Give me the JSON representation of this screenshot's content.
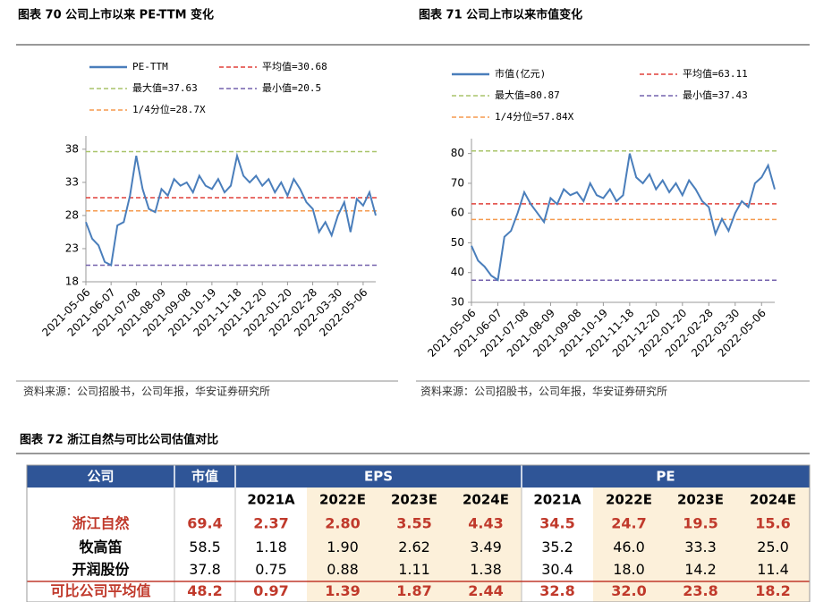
{
  "chart_data": [
    {
      "type": "line",
      "title": "图表 70 公司上市以来 PE-TTM 变化",
      "source": "资料来源：公司招股书，公司年报，华安证券研究所",
      "categories": [
        "2021-05-06",
        null,
        null,
        null,
        "2021-06-07",
        null,
        null,
        null,
        "2021-07-08",
        null,
        null,
        null,
        "2021-08-09",
        null,
        null,
        null,
        "2021-09-08",
        null,
        null,
        null,
        "2021-10-19",
        null,
        null,
        null,
        "2021-11-18",
        null,
        null,
        null,
        "2021-12-20",
        null,
        null,
        null,
        "2022-01-20",
        null,
        null,
        null,
        "2022-02-28",
        null,
        null,
        null,
        "2022-03-30",
        null,
        null,
        null,
        "2022-05-06",
        null,
        null
      ],
      "series": [
        {
          "name": "PE-TTM",
          "color": "#4a7ebb",
          "values": [
            27,
            24.5,
            23.5,
            21,
            20.5,
            26.5,
            27,
            31,
            37,
            32,
            29,
            28.5,
            32,
            31,
            33.5,
            32.5,
            33,
            31.5,
            34,
            32.5,
            32,
            33.5,
            31.5,
            32.5,
            37,
            34,
            33,
            34,
            32.5,
            33.5,
            31.5,
            33,
            31,
            33.5,
            32,
            30,
            29,
            25.5,
            27,
            25,
            28,
            30,
            25.5,
            30.5,
            29.5,
            31.5,
            28
          ]
        }
      ],
      "hlines": [
        {
          "name": "平均值=30.68",
          "value": 30.68,
          "color": "#e0403a"
        },
        {
          "name": "最大值=37.63",
          "value": 37.63,
          "color": "#a9c46a"
        },
        {
          "name": "最小值=20.5",
          "value": 20.5,
          "color": "#7462ad"
        },
        {
          "name": "1/4分位=28.7X",
          "value": 28.7,
          "color": "#f59a4e"
        }
      ],
      "ylim": [
        18,
        40
      ],
      "yticks": [
        18,
        23,
        28,
        33,
        38
      ]
    },
    {
      "type": "line",
      "title": "图表 71 公司上市以来市值变化",
      "source": "资料来源：公司招股书，公司年报，华安证券研究所",
      "categories": [
        "2021-05-06",
        null,
        null,
        null,
        "2021-06-07",
        null,
        null,
        null,
        "2021-07-08",
        null,
        null,
        null,
        "2021-08-09",
        null,
        null,
        null,
        "2021-09-08",
        null,
        null,
        null,
        "2021-10-19",
        null,
        null,
        null,
        "2021-11-18",
        null,
        null,
        null,
        "2021-12-20",
        null,
        null,
        null,
        "2022-01-20",
        null,
        null,
        null,
        "2022-02-28",
        null,
        null,
        null,
        "2022-03-30",
        null,
        null,
        null,
        "2022-05-06",
        null,
        null
      ],
      "series": [
        {
          "name": "市值(亿元)",
          "color": "#4a7ebb",
          "values": [
            49,
            44,
            42,
            39,
            37.5,
            52,
            54,
            60,
            67,
            63,
            60,
            57,
            65,
            63,
            68,
            66,
            67,
            64,
            70,
            66,
            65,
            68,
            64,
            66,
            80,
            72,
            70,
            73,
            68,
            71,
            67,
            70,
            66,
            71,
            68,
            64,
            62,
            53,
            58,
            54,
            60,
            64,
            62,
            70,
            72,
            76,
            68
          ]
        }
      ],
      "hlines": [
        {
          "name": "平均值=63.11",
          "value": 63.11,
          "color": "#e0403a"
        },
        {
          "name": "最大值=80.87",
          "value": 80.87,
          "color": "#a9c46a"
        },
        {
          "name": "最小值=37.43",
          "value": 37.43,
          "color": "#7462ad"
        },
        {
          "name": "1/4分位=57.84X",
          "value": 57.84,
          "color": "#f59a4e"
        }
      ],
      "ylim": [
        30,
        85
      ],
      "yticks": [
        30,
        40,
        50,
        60,
        70,
        80
      ]
    }
  ],
  "table": {
    "title": "图表 72 浙江自然与可比公司估值对比",
    "header": [
      "公司",
      "市值",
      "EPS",
      "PE"
    ],
    "subheader": [
      "2021A",
      "2022E",
      "2023E",
      "2024E",
      "2021A",
      "2022E",
      "2023E",
      "2024E"
    ],
    "rows": [
      [
        "浙江自然",
        "69.4",
        "2.37",
        "2.80",
        "3.55",
        "4.43",
        "34.5",
        "24.7",
        "19.5",
        "15.6"
      ],
      [
        "牧高笛",
        "58.5",
        "1.18",
        "1.90",
        "2.62",
        "3.49",
        "35.2",
        "46.0",
        "33.3",
        "25.0"
      ],
      [
        "开润股份",
        "37.8",
        "0.75",
        "0.88",
        "1.11",
        "1.38",
        "30.4",
        "18.0",
        "14.2",
        "11.4"
      ],
      [
        "可比公司平均值",
        "48.2",
        "0.97",
        "1.39",
        "1.87",
        "2.44",
        "32.8",
        "32.0",
        "23.8",
        "18.2"
      ]
    ]
  }
}
